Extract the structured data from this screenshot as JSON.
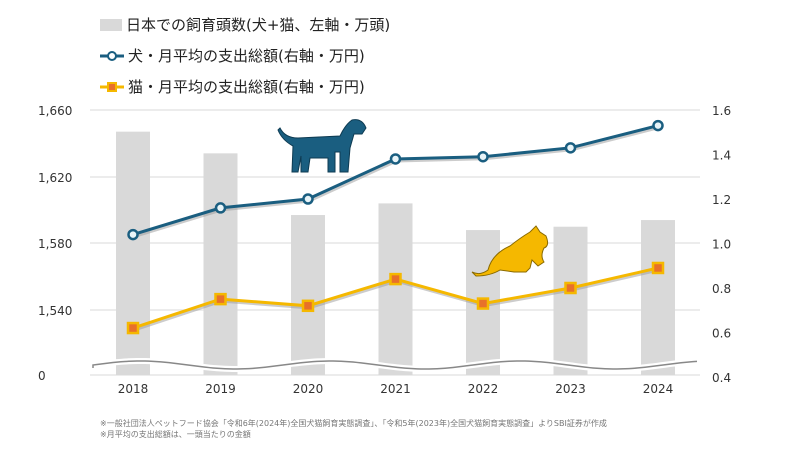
{
  "chart_data": {
    "type": "bar+line",
    "categories": [
      "2018",
      "2019",
      "2020",
      "2021",
      "2022",
      "2023",
      "2024"
    ],
    "series": [
      {
        "name": "日本での飼育頭数(犬+猫、左軸・万頭)",
        "type": "bar",
        "axis": "left",
        "color": "#d9d9d9",
        "values": [
          1647,
          1634,
          1597,
          1604,
          1588,
          1590,
          1594
        ]
      },
      {
        "name": "犬・月平均の支出総額(右軸・万円)",
        "type": "line",
        "axis": "right",
        "color": "#1a5e80",
        "values": [
          1.04,
          1.16,
          1.2,
          1.38,
          1.39,
          1.43,
          1.53
        ]
      },
      {
        "name": "猫・月平均の支出総額(右軸・万円)",
        "type": "line",
        "axis": "right",
        "color": "#f5b800",
        "values": [
          0.62,
          0.75,
          0.72,
          0.84,
          0.73,
          0.8,
          0.89
        ]
      }
    ],
    "left_axis": {
      "ticks": [
        "1,660",
        "1,620",
        "1,580",
        "1,540",
        "0"
      ],
      "tick_values": [
        1660,
        1620,
        1580,
        1540
      ],
      "range": [
        1520,
        1660
      ],
      "broken": true
    },
    "right_axis": {
      "ticks": [
        "1.6",
        "1.4",
        "1.2",
        "1.0",
        "0.8",
        "0.6",
        "0.4"
      ],
      "range": [
        0.4,
        1.6
      ]
    },
    "grid": true,
    "legend_placement": "top-left"
  },
  "footnotes": [
    "※一般社団法人ペットフード協会「令和6年(2024年)全国犬猫飼育実態調査」、「令和5年(2023年)全国犬猫飼育実態調査」よりSBI証券が作成",
    "※月平均の支出総額は、一頭当たりの金額"
  ]
}
